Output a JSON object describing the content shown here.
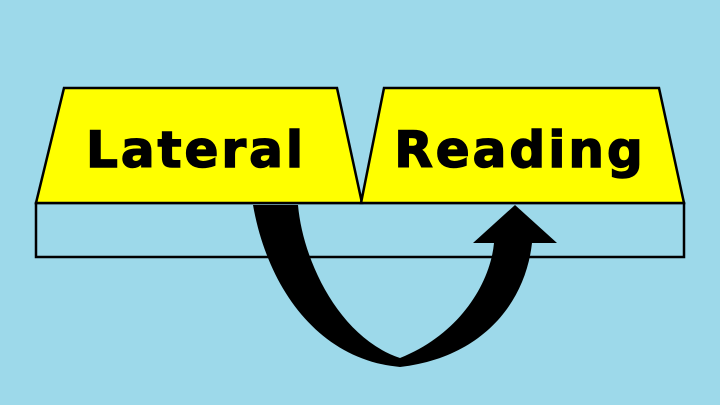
{
  "background_color": "#9dd9ea",
  "shelf_color": "#9dd9ea",
  "card_color": "#ffff00",
  "outline_color": "#000000",
  "arrow_color": "#000000",
  "cards": [
    {
      "label": "Lateral"
    },
    {
      "label": "Reading"
    }
  ]
}
